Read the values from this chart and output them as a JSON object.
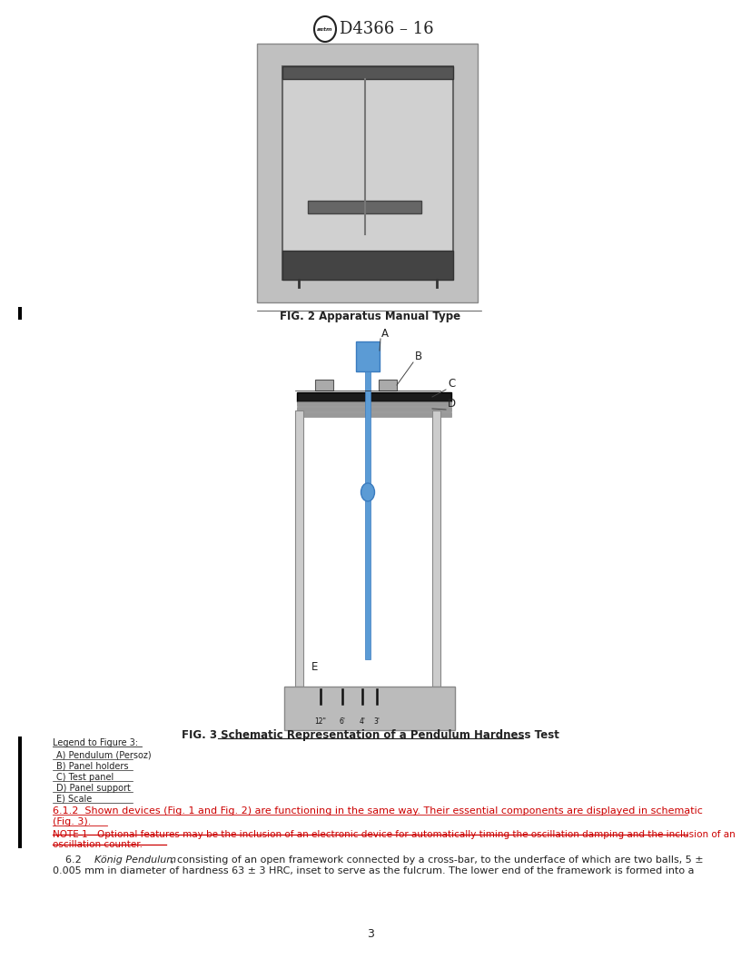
{
  "page_width": 8.16,
  "page_height": 10.56,
  "bg_color": "#ffffff",
  "header_title": "D4366 – 16",
  "fig2_caption": "FIG. 2 Apparatus Manual Type",
  "fig3_caption": "FIG. 3 Schematic Representation of a Pendulum Hardness Test",
  "legend_title": "Legend to Figure 3:",
  "legend_items": [
    "A) Pendulum (Persoz)",
    "B) Panel holders",
    "C) Test panel",
    "D) Panel support",
    "E) Scale"
  ],
  "text_612_main": "6.1.2  Shown devices (Fig. 1 and Fig. 2) are functioning in the same way. Their essential components are displayed in schematic",
  "text_612_cont": "(Fig. 3).",
  "text_note1_line1": "NOTE 1—Optional features may be the inclusion of an electronic device for automatically timing the oscillation damping and the inclusion of an",
  "text_note1_line2": "oscillation counter.",
  "text_62_prefix": "    6.2  ",
  "text_62_italic": "König Pendulum",
  "text_62_rest": ", consisting of an open framework connected by a cross-bar, to the underface of which are two balls, 5 ±",
  "text_62_line2": "0.005 mm in diameter of hardness 63 ± 3 HRC, inset to serve as the fulcrum. The lower end of the framework is formed into a",
  "scale_labels": [
    "12\"",
    "6'",
    "4'",
    "3'"
  ],
  "page_num": "3",
  "left_bar_color": "#000000",
  "red_color": "#cc0000",
  "blue_pendulum": "#5b9bd5",
  "blue_pendulum_dark": "#3a7bbf",
  "photo_bg": "#c0c0c0",
  "cab_light": "#d4d4d4",
  "cab_dark": "#444444",
  "frame_light": "#cccccc",
  "frame_mid": "#999999",
  "base_color": "#bbbbbb",
  "holder_color": "#aaaaaa",
  "panel_color": "#1a1a1a",
  "stripe_color": "#999999"
}
